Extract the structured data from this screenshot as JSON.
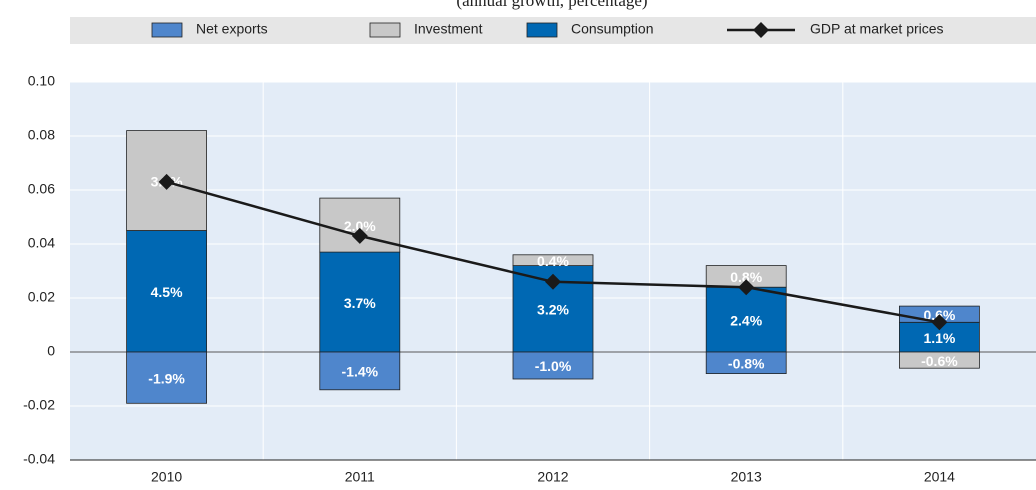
{
  "chart_data": {
    "type": "bar",
    "stacked": true,
    "subtitle": "(annual growth, percentage)",
    "categories": [
      "2010",
      "2011",
      "2012",
      "2013",
      "2014"
    ],
    "series": [
      {
        "name": "Net exports",
        "color": "#4f86cc",
        "values": [
          -0.019,
          -0.014,
          -0.01,
          -0.008,
          0.006
        ],
        "value_labels": [
          "-1.9%",
          "-1.4%",
          "-1.0%",
          "-0.8%",
          "0.6%"
        ]
      },
      {
        "name": "Investment",
        "color": "#c8c8c8",
        "values": [
          0.037,
          0.02,
          0.004,
          0.008,
          -0.006
        ],
        "value_labels": [
          "3.7%",
          "2.0%",
          "0.4%",
          "0.8%",
          "-0.6%"
        ]
      },
      {
        "name": "Consumption",
        "color": "#0068b3",
        "values": [
          0.045,
          0.037,
          0.032,
          0.024,
          0.011
        ],
        "value_labels": [
          "4.5%",
          "3.7%",
          "3.2%",
          "2.4%",
          "1.1%"
        ]
      },
      {
        "name": "GDP at market prices",
        "type": "line",
        "color": "#1a1a1a",
        "values": [
          0.063,
          0.043,
          0.026,
          0.024,
          0.011
        ]
      }
    ],
    "ylim": [
      -0.04,
      0.1
    ],
    "yticks": [
      -0.04,
      -0.02,
      0,
      0.02,
      0.04,
      0.06,
      0.08,
      {
        "value": 0.1,
        "label": "0.10"
      }
    ],
    "grid": true
  }
}
